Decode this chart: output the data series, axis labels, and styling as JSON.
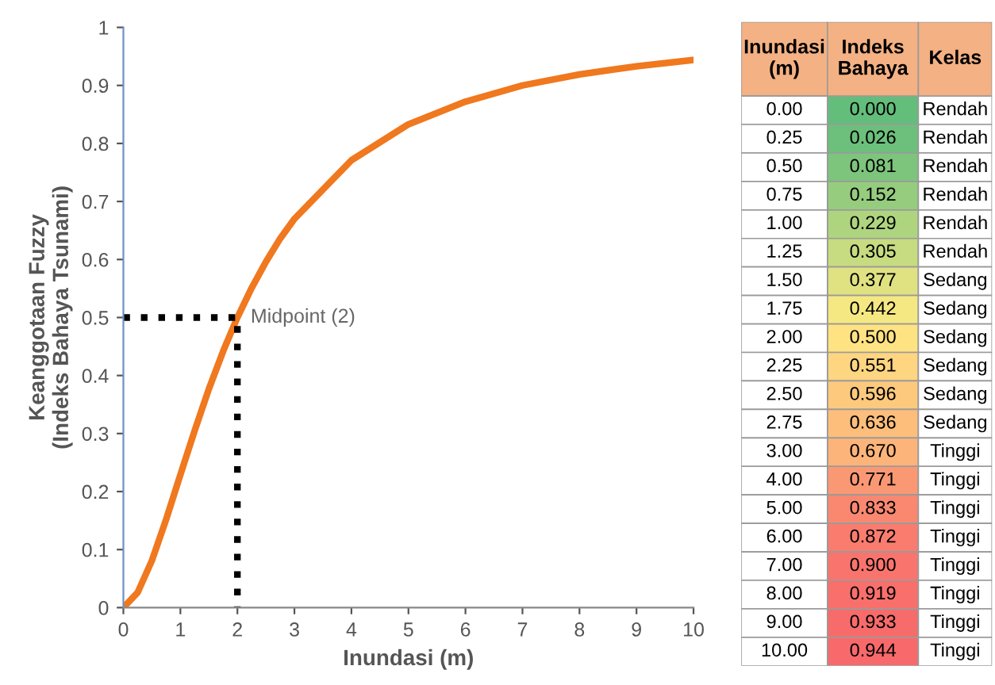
{
  "chart_data": [
    {
      "type": "line",
      "xlabel": "Inundasi (m)",
      "ylabel": "Keanggotaan Fuzzy\n(Indeks Bahaya Tsunami)",
      "xlim": [
        0,
        10
      ],
      "xticks": [
        0,
        1,
        2,
        3,
        4,
        5,
        6,
        7,
        8,
        9,
        10
      ],
      "ylim": [
        0,
        1
      ],
      "yticks": [
        0,
        0.1,
        0.2,
        0.3,
        0.4,
        0.5,
        0.6,
        0.7,
        0.8,
        0.9,
        1
      ],
      "grid": false,
      "legend": false,
      "series": [
        {
          "type": "line",
          "x": [
            0,
            0.25,
            0.5,
            0.75,
            1,
            1.25,
            1.5,
            1.75,
            2,
            2.25,
            2.5,
            2.75,
            3,
            4,
            5,
            6,
            7,
            8,
            9,
            10
          ],
          "values": [
            0.0,
            0.026,
            0.081,
            0.152,
            0.229,
            0.305,
            0.377,
            0.442,
            0.5,
            0.551,
            0.596,
            0.636,
            0.67,
            0.771,
            0.833,
            0.872,
            0.9,
            0.919,
            0.933,
            0.944
          ],
          "color": "#f0781e",
          "line_style": "solid"
        },
        {
          "type": "line",
          "x": [
            0,
            2,
            2
          ],
          "values": [
            0.5,
            0.5,
            0
          ],
          "color": "#000000",
          "line_style": "dotted"
        }
      ],
      "annotations": [
        {
          "text": "Midpoint (2)",
          "x": 2,
          "y": 0.5
        }
      ]
    },
    {
      "type": "heatmap",
      "ylabel": "Inundasi (m)",
      "categories": [
        "Indeks Bahaya",
        "Kelas"
      ],
      "y_categories": [
        "0.00",
        "0.25",
        "0.50",
        "0.75",
        "1.00",
        "1.25",
        "1.50",
        "1.75",
        "2.00",
        "2.25",
        "2.50",
        "2.75",
        "3.00",
        "4.00",
        "5.00",
        "6.00",
        "7.00",
        "8.00",
        "9.00",
        "10.00"
      ],
      "cells": [
        [
          0.0,
          null
        ],
        [
          0.026,
          null
        ],
        [
          0.081,
          null
        ],
        [
          0.152,
          null
        ],
        [
          0.229,
          null
        ],
        [
          0.305,
          null
        ],
        [
          0.377,
          null
        ],
        [
          0.442,
          null
        ],
        [
          0.5,
          null
        ],
        [
          0.551,
          null
        ],
        [
          0.596,
          null
        ],
        [
          0.636,
          null
        ],
        [
          0.67,
          null
        ],
        [
          0.771,
          null
        ],
        [
          0.833,
          null
        ],
        [
          0.872,
          null
        ],
        [
          0.9,
          null
        ],
        [
          0.919,
          null
        ],
        [
          0.933,
          null
        ],
        [
          0.944,
          null
        ]
      ],
      "cell_labels": [
        [
          "0.000",
          "Rendah"
        ],
        [
          "0.026",
          "Rendah"
        ],
        [
          "0.081",
          "Rendah"
        ],
        [
          "0.152",
          "Rendah"
        ],
        [
          "0.229",
          "Rendah"
        ],
        [
          "0.305",
          "Rendah"
        ],
        [
          "0.377",
          "Sedang"
        ],
        [
          "0.442",
          "Sedang"
        ],
        [
          "0.500",
          "Sedang"
        ],
        [
          "0.551",
          "Sedang"
        ],
        [
          "0.596",
          "Sedang"
        ],
        [
          "0.636",
          "Sedang"
        ],
        [
          "0.670",
          "Tinggi"
        ],
        [
          "0.771",
          "Tinggi"
        ],
        [
          "0.833",
          "Tinggi"
        ],
        [
          "0.872",
          "Tinggi"
        ],
        [
          "0.900",
          "Tinggi"
        ],
        [
          "0.919",
          "Tinggi"
        ],
        [
          "0.933",
          "Tinggi"
        ],
        [
          "0.944",
          "Tinggi"
        ]
      ]
    }
  ]
}
